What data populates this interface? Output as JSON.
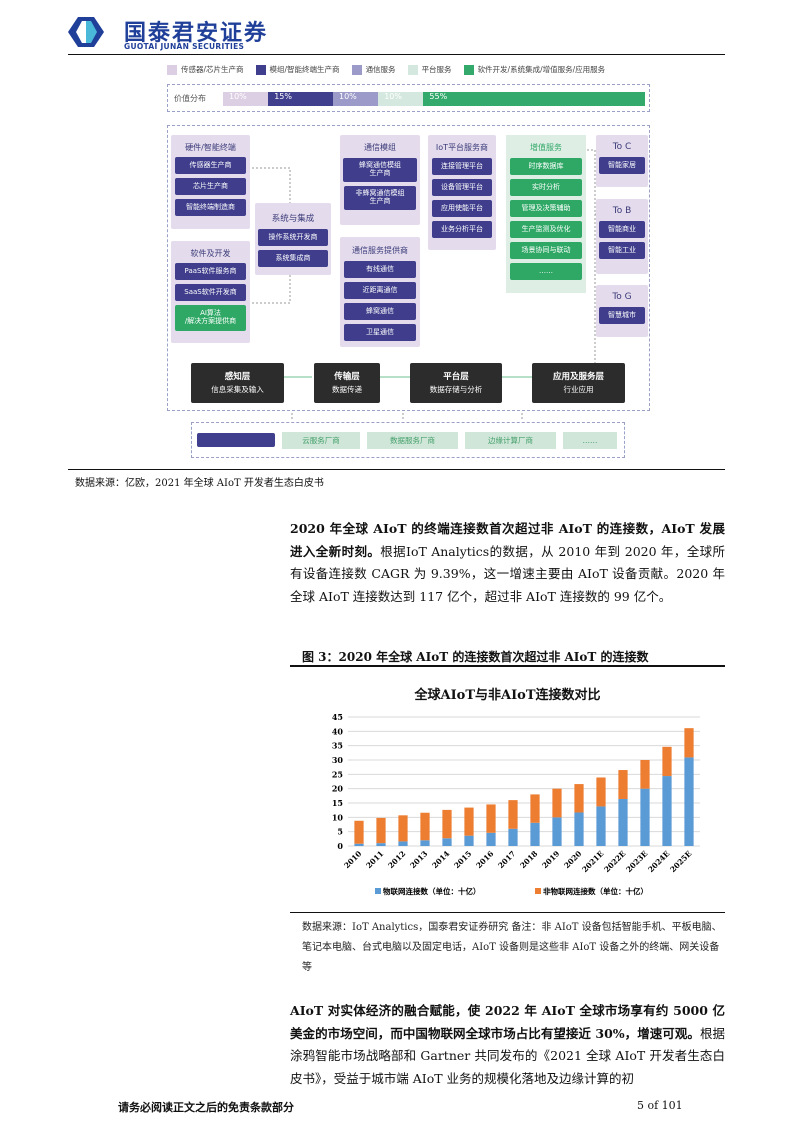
{
  "header": {
    "logo_cn": "国泰君安证券",
    "logo_en": "GUOTAI JUNAN SECURITIES"
  },
  "diagram": {
    "legend": [
      {
        "label": "传感器/芯片生产商",
        "color": "#ddcfe3"
      },
      {
        "label": "模组/智能终端生产商",
        "color": "#403f8e"
      },
      {
        "label": "通信服务",
        "color": "#9b9ac8"
      },
      {
        "label": "平台服务",
        "color": "#d4e8df"
      },
      {
        "label": "软件开发/系统集成/增值服务/应用服务",
        "color": "#34a96c"
      }
    ],
    "value_label": "价值分布",
    "value_shares": [
      {
        "label": "10%",
        "value": 10
      },
      {
        "label": "15%",
        "value": 15
      },
      {
        "label": "10%",
        "value": 10
      },
      {
        "label": "10%",
        "value": 10
      },
      {
        "label": "55%",
        "value": 55
      }
    ],
    "hardware": {
      "title": "硬件/智能终端",
      "items": [
        "传感器生产商",
        "芯片生产商",
        "智能终端制造商"
      ]
    },
    "software": {
      "title": "软件及开发",
      "items": [
        "PaaS软件服务商",
        "SaaS软件开发商",
        "AI算法\n/解决方案提供商"
      ]
    },
    "system": {
      "title": "系统与集成",
      "items": [
        "操作系统开发商",
        "系统集成商"
      ]
    },
    "comm_module": {
      "title": "通信模组",
      "items": [
        "蜂窝通信模组\n生产商",
        "非蜂窝通信模组\n生产商"
      ]
    },
    "comm_service": {
      "title": "通信服务提供商",
      "items": [
        "有线通信",
        "近距离通信",
        "蜂窝通信",
        "卫星通信"
      ]
    },
    "iot_platform": {
      "title": "IoT平台服务商",
      "items": [
        "连接管理平台",
        "设备管理平台",
        "应用使能平台",
        "业务分析平台"
      ]
    },
    "value_added": {
      "title": "增值服务",
      "items": [
        "时序数据库",
        "实时分析",
        "管理及决策辅助",
        "生产监测及优化",
        "场景协同与联动",
        "……"
      ]
    },
    "to_c": {
      "title": "To C",
      "items": [
        "智能家居"
      ]
    },
    "to_b": {
      "title": "To B",
      "items": [
        "智能商业",
        "智能工业"
      ]
    },
    "to_g": {
      "title": "To G",
      "items": [
        "智慧城市"
      ]
    },
    "layers": [
      {
        "title": "感知层",
        "sub": "信息采集及输入"
      },
      {
        "title": "传输层",
        "sub": "数据传递"
      },
      {
        "title": "平台层",
        "sub": "数据存储与分析"
      },
      {
        "title": "应用及服务层",
        "sub": "行业应用"
      }
    ],
    "bottom": [
      "",
      "云服务厂商",
      "数据服务厂商",
      "边缘计算厂商",
      "……"
    ]
  },
  "source1": "数据来源：亿欧，2021 年全球 AIoT 开发者生态白皮书",
  "para1": {
    "bold": "2020 年全球 AIoT 的终端连接数首次超过非 AIoT 的连接数，AIoT 发展进入全新时刻。",
    "text": "根据IoT Analytics的数据，从 2010 年到 2020 年，全球所有设备连接数 CAGR 为 9.39%，这一增速主要由 AIoT 设备贡献。2020 年全球 AIoT 连接数达到 117 亿个，超过非 AIoT 连接数的 99 亿个。"
  },
  "figure_title": "图 3：2020 年全球 AIoT 的连接数首次超过非 AIoT 的连接数",
  "chart_data": {
    "type": "bar",
    "stacked": true,
    "title": "全球AIoT与非AIoT连接数对比",
    "categories": [
      "2010",
      "2011",
      "2012",
      "2013",
      "2014",
      "2015",
      "2016",
      "2017",
      "2018",
      "2019",
      "2020",
      "2021E",
      "2022E",
      "2023E",
      "2024E",
      "2025E"
    ],
    "series": [
      {
        "name": "物联网连接数（单位：十亿）",
        "color": "#5b9bd5",
        "values": [
          0.8,
          1.0,
          1.6,
          2.0,
          2.7,
          3.6,
          4.6,
          6.0,
          8.1,
          10.0,
          11.7,
          13.8,
          16.4,
          20.0,
          24.4,
          30.9
        ]
      },
      {
        "name": "非物联网连接数（单位：十亿）",
        "color": "#ed7d31",
        "values": [
          8.0,
          8.8,
          9.1,
          9.6,
          9.9,
          9.8,
          9.9,
          10.0,
          9.9,
          10.0,
          9.9,
          10.1,
          10.1,
          10.0,
          10.2,
          10.2
        ]
      }
    ],
    "ylim": [
      0,
      45
    ],
    "yticks": [
      0,
      5,
      10,
      15,
      20,
      25,
      30,
      35,
      40,
      45
    ],
    "grid": true,
    "legend": "bottom"
  },
  "source2": "数据来源：IoT Analytics，国泰君安证券研究  备注：非 AIoT 设备包括智能手机、平板电脑、笔记本电脑、台式电脑以及固定电话，AIoT 设备则是这些非 AIoT 设备之外的终端、网关设备等",
  "para2": {
    "bold": "AIoT 对实体经济的融合赋能，使 2022 年 AIoT 全球市场享有约 5000 亿美金的市场空间，而中国物联网全球市场占比有望接近 30%，增速可观。",
    "text": "根据涂鸦智能市场战略部和 Gartner 共同发布的《2021 全球 AIoT 开发者生态白皮书》，受益于城市端 AIoT 业务的规模化落地及边缘计算的初"
  },
  "footer": {
    "disclaimer": "请务必阅读正文之后的免责条款部分",
    "page": "5 of 101"
  }
}
